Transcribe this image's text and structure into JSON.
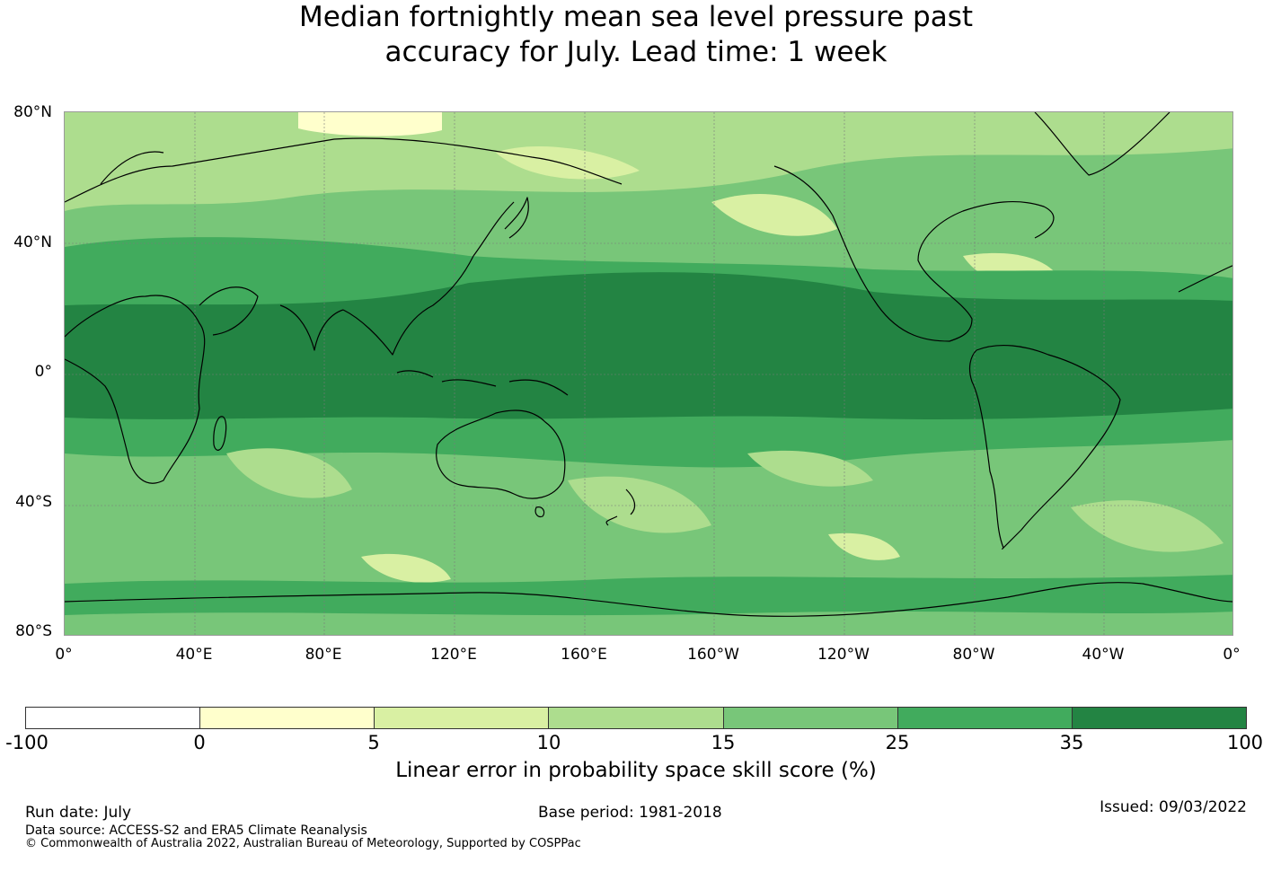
{
  "title": {
    "line1": "Median fortnightly mean sea level pressure past",
    "line2": "accuracy for July. Lead time: 1 week"
  },
  "map": {
    "lat_labels": [
      "80°N",
      "40°N",
      "0°",
      "40°S",
      "80°S"
    ],
    "lon_labels": [
      "0°",
      "40°E",
      "80°E",
      "120°E",
      "160°E",
      "160°W",
      "120°W",
      "80°W",
      "40°W",
      "0°"
    ],
    "ocean_color": "#78c679"
  },
  "colorbar": {
    "title": "Linear error in probability space skill score (%)",
    "ticks": [
      "-100",
      "0",
      "5",
      "10",
      "15",
      "25",
      "35",
      "100"
    ],
    "colors": [
      "#ffffff",
      "#ffffcc",
      "#d9f0a3",
      "#addd8e",
      "#78c679",
      "#41ab5d",
      "#238443"
    ]
  },
  "footer": {
    "run_date": "Run date: July",
    "base_period": "Base period: 1981-2018",
    "issued": "Issued: 09/03/2022",
    "data_source": "Data source: ACCESS-S2 and ERA5 Climate Reanalysis",
    "copyright": "© Commonwealth of Australia 2022, Australian Bureau of Meteorology, Supported by COSPPac"
  }
}
